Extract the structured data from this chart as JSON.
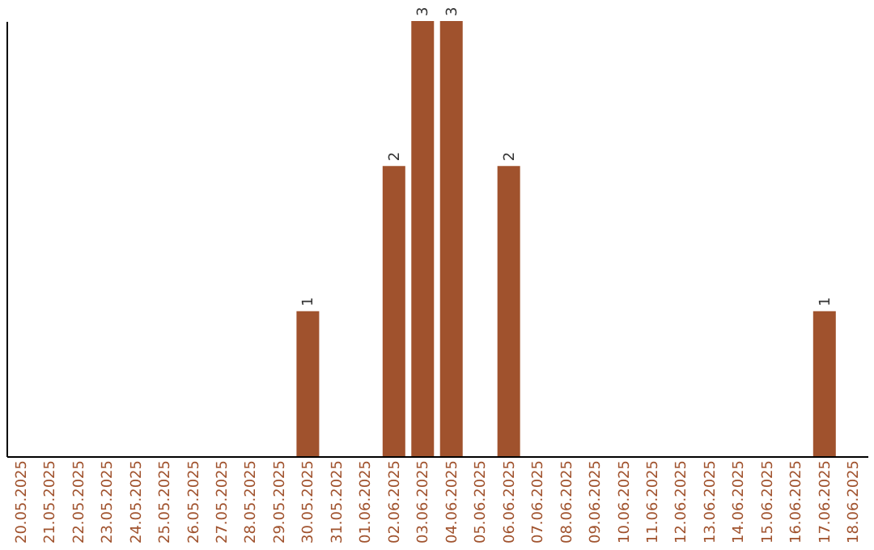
{
  "chart_data": {
    "type": "bar",
    "categories": [
      "20.05.2025",
      "21.05.2025",
      "22.05.2025",
      "23.05.2025",
      "24.05.2025",
      "25.05.2025",
      "26.05.2025",
      "27.05.2025",
      "28.05.2025",
      "29.05.2025",
      "30.05.2025",
      "31.05.2025",
      "01.06.2025",
      "02.06.2025",
      "03.06.2025",
      "04.06.2025",
      "05.06.2025",
      "06.06.2025",
      "07.06.2025",
      "08.06.2025",
      "09.06.2025",
      "10.06.2025",
      "11.06.2025",
      "12.06.2025",
      "13.06.2025",
      "14.06.2025",
      "15.06.2025",
      "16.06.2025",
      "17.06.2025",
      "18.06.2025"
    ],
    "values": [
      0,
      0,
      0,
      0,
      0,
      0,
      0,
      0,
      0,
      0,
      1,
      0,
      0,
      2,
      3,
      3,
      0,
      2,
      0,
      0,
      0,
      0,
      0,
      0,
      0,
      0,
      0,
      0,
      1,
      0
    ],
    "value_labels": [
      null,
      null,
      null,
      null,
      null,
      null,
      null,
      null,
      null,
      null,
      "1",
      null,
      null,
      "2",
      "3",
      "3",
      null,
      "2",
      null,
      null,
      null,
      null,
      null,
      null,
      null,
      null,
      null,
      null,
      "1",
      null
    ],
    "color": "#a0522d",
    "ylim": [
      0,
      3
    ],
    "tick_labels": "x",
    "grid": false
  }
}
